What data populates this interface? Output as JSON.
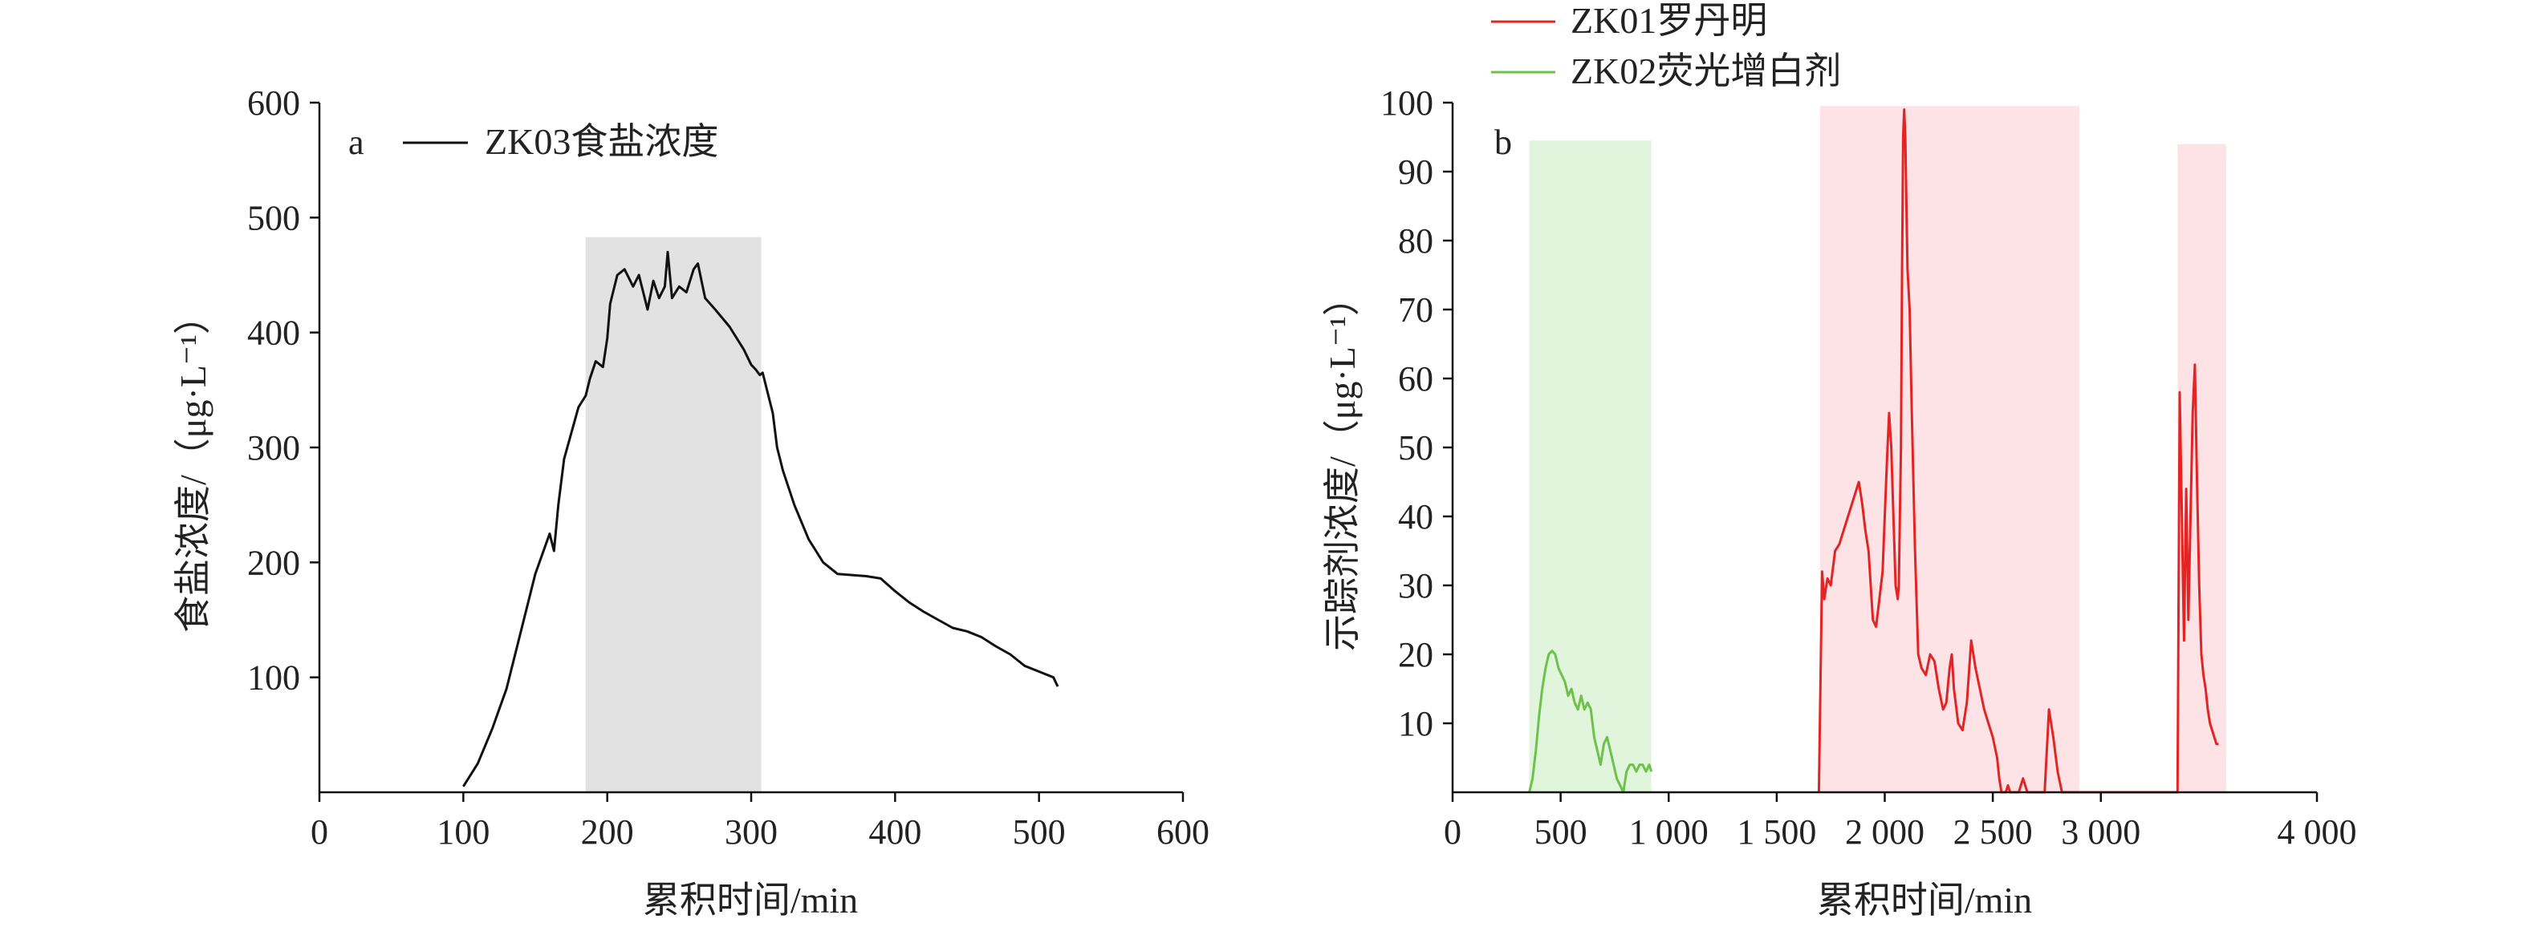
{
  "chart_data": [
    {
      "panel": "a",
      "type": "line",
      "xlabel": "累积时间/min",
      "ylabel": "食盐浓度/（μg·L⁻¹）",
      "xlim": [
        0,
        600
      ],
      "ylim": [
        0,
        600
      ],
      "x_ticks": [
        0,
        100,
        200,
        300,
        400,
        500,
        600
      ],
      "x_tick_labels": [
        "0",
        "100",
        "200",
        "300",
        "400",
        "500",
        "600"
      ],
      "y_ticks": [
        100,
        200,
        300,
        400,
        500,
        600
      ],
      "y_tick_labels": [
        "100",
        "200",
        "300",
        "400",
        "500",
        "600"
      ],
      "legend_position": "top-left",
      "highlights": [
        {
          "x0": 185,
          "x1": 307,
          "y_top": 483,
          "color": "#e2e2e2"
        }
      ],
      "series": [
        {
          "name": "ZK03食盐浓度",
          "color": "#111111",
          "x": [
            100,
            110,
            120,
            130,
            140,
            150,
            160,
            163,
            166,
            170,
            180,
            185,
            188,
            192,
            197,
            200,
            202,
            207,
            212,
            218,
            222,
            228,
            232,
            236,
            240,
            242,
            245,
            250,
            255,
            260,
            263,
            268,
            275,
            285,
            295,
            300,
            303,
            306,
            308,
            310,
            315,
            318,
            320,
            322,
            330,
            340,
            350,
            360,
            380,
            390,
            400,
            410,
            420,
            430,
            440,
            450,
            460,
            470,
            480,
            490,
            500,
            510,
            513
          ],
          "y": [
            5,
            25,
            55,
            90,
            140,
            190,
            225,
            210,
            250,
            290,
            335,
            345,
            360,
            375,
            370,
            395,
            425,
            450,
            455,
            440,
            450,
            420,
            445,
            430,
            440,
            470,
            430,
            440,
            435,
            455,
            460,
            430,
            420,
            405,
            385,
            372,
            368,
            363,
            365,
            355,
            330,
            300,
            290,
            280,
            250,
            220,
            200,
            190,
            188,
            186,
            175,
            165,
            157,
            150,
            143,
            140,
            135,
            127,
            120,
            110,
            105,
            100,
            92
          ]
        }
      ]
    },
    {
      "panel": "b",
      "type": "line",
      "xlabel": "累积时间/min",
      "ylabel": "示踪剂浓度/（μg·L⁻¹）",
      "xlim": [
        0,
        4000
      ],
      "ylim": [
        0,
        100
      ],
      "x_ticks": [
        0,
        500,
        1000,
        1500,
        2000,
        2500,
        3000,
        4000
      ],
      "x_tick_labels": [
        "0",
        "500",
        "1 000",
        "1 500",
        "2 000",
        "2 500",
        "3 000",
        "4 000"
      ],
      "y_ticks": [
        10,
        20,
        30,
        40,
        50,
        60,
        70,
        80,
        90,
        100
      ],
      "y_tick_labels": [
        "10",
        "20",
        "30",
        "40",
        "50",
        "60",
        "70",
        "80",
        "90",
        "100"
      ],
      "legend_position": "top-left, above plot",
      "highlights": [
        {
          "x0": 355,
          "x1": 920,
          "y_top": 94.5,
          "color": "#e1f5dd"
        },
        {
          "x0": 1700,
          "x1": 2900,
          "y_top": 99.5,
          "color": "#fde2e6"
        },
        {
          "x0": 3355,
          "x1": 3580,
          "y_top": 94,
          "color": "#fde2e6"
        }
      ],
      "series": [
        {
          "name": "ZK01罗丹明",
          "color": "#e32424",
          "x": [
            1695,
            1710,
            1720,
            1735,
            1750,
            1770,
            1790,
            1810,
            1830,
            1850,
            1870,
            1880,
            1895,
            1910,
            1925,
            1935,
            1945,
            1960,
            1975,
            1990,
            2000,
            2010,
            2020,
            2030,
            2040,
            2050,
            2060,
            2065,
            2075,
            2080,
            2085,
            2090,
            2095,
            2105,
            2115,
            2125,
            2140,
            2155,
            2170,
            2190,
            2210,
            2230,
            2250,
            2270,
            2285,
            2300,
            2310,
            2320,
            2340,
            2360,
            2380,
            2400,
            2420,
            2440,
            2460,
            2480,
            2500,
            2520,
            2530,
            2540,
            2550,
            2560,
            2570,
            2580,
            2600,
            2620,
            2640,
            2660,
            2680,
            2700,
            2720,
            2740,
            2760,
            2780,
            2800,
            2820,
            2840,
            2860,
            2880,
            3345,
            3355,
            3365,
            3375,
            3385,
            3395,
            3405,
            3415,
            3425,
            3435,
            3445,
            3455,
            3465,
            3475,
            3485,
            3495,
            3505,
            3515,
            3525,
            3535,
            3545
          ],
          "y": [
            0,
            32,
            28,
            31,
            30,
            35,
            36,
            38,
            40,
            42,
            44,
            45,
            42,
            38,
            35,
            30,
            25,
            24,
            28,
            32,
            40,
            48,
            55,
            50,
            40,
            30,
            28,
            30,
            50,
            75,
            95,
            99,
            95,
            76,
            70,
            55,
            35,
            20,
            18,
            17,
            20,
            19,
            15,
            12,
            13,
            18,
            20,
            15,
            10,
            9,
            13,
            22,
            18,
            15,
            12,
            10,
            8,
            5,
            2,
            0,
            0,
            0,
            1,
            0,
            0,
            0,
            2,
            0,
            0,
            0,
            0,
            0,
            12,
            8,
            3,
            0,
            0,
            0,
            0,
            0,
            0,
            58,
            40,
            22,
            44,
            25,
            40,
            55,
            62,
            45,
            30,
            20,
            17,
            15,
            12,
            10,
            9,
            8,
            7,
            7
          ]
        },
        {
          "name": "ZK02荧光增白剂",
          "color": "#6cc24a",
          "x": [
            355,
            370,
            385,
            400,
            415,
            430,
            445,
            460,
            475,
            490,
            505,
            520,
            535,
            550,
            565,
            580,
            595,
            610,
            625,
            640,
            655,
            670,
            685,
            700,
            715,
            730,
            745,
            760,
            775,
            790,
            805,
            820,
            835,
            850,
            865,
            880,
            895,
            910,
            920
          ],
          "y": [
            0,
            2,
            6,
            11,
            15,
            18,
            20,
            20.5,
            20,
            18,
            17,
            16,
            14,
            15,
            13,
            12,
            14,
            12,
            13,
            12,
            8,
            6,
            4,
            7,
            8,
            6,
            4,
            2,
            1,
            0,
            3,
            4,
            4,
            3,
            4,
            4,
            3,
            4,
            3
          ]
        }
      ]
    }
  ]
}
